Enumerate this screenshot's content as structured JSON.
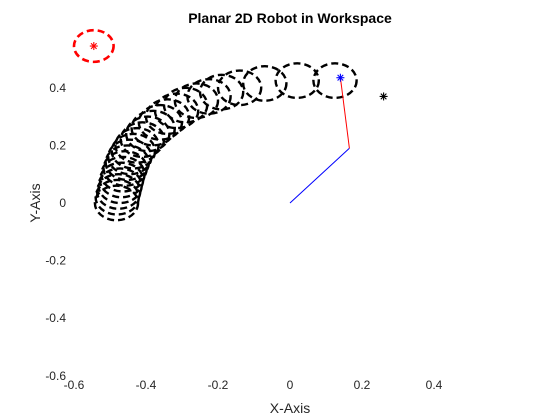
{
  "chart_data": {
    "type": "scatter",
    "title": "Planar 2D Robot in Workspace",
    "xlabel": "X-Axis",
    "ylabel": "Y-Axis",
    "xlim": [
      -0.6,
      0.4
    ],
    "ylim": [
      -0.6,
      0.5
    ],
    "xticks": [
      "-0.6",
      "-0.4",
      "-0.2",
      "0",
      "0.2",
      "0.4"
    ],
    "yticks": [
      "-0.6",
      "-0.4",
      "-0.2",
      "0",
      "0.2",
      "0.4"
    ],
    "grid": false,
    "legend": "none",
    "series": [
      {
        "role": "link-1",
        "color": "#0000ff",
        "x": [
          0.0,
          0.165
        ],
        "y": [
          0.0,
          0.19
        ]
      },
      {
        "role": "link-2",
        "color": "#ff0000",
        "x": [
          0.165,
          0.14
        ],
        "y": [
          0.19,
          0.435
        ]
      },
      {
        "role": "end-effector",
        "color": "#0000ff",
        "marker": "asterisk",
        "x": [
          0.14
        ],
        "y": [
          0.435
        ]
      },
      {
        "role": "target",
        "color": "#000000",
        "marker": "asterisk",
        "x": [
          0.26
        ],
        "y": [
          0.37
        ]
      },
      {
        "role": "obstacle",
        "color": "#ff0000",
        "marker": "asterisk",
        "linestyle": "dashed",
        "x": [
          -0.545
        ],
        "y": [
          0.545
        ],
        "radius": 0.055
      },
      {
        "role": "trajectory-circles",
        "color": "#000000",
        "linestyle": "dashed",
        "radius": 0.06,
        "x": [
          0.125,
          0.02,
          -0.07,
          -0.14,
          -0.19,
          -0.225,
          -0.26,
          -0.29,
          -0.315,
          -0.34,
          -0.36,
          -0.38,
          -0.395,
          -0.41,
          -0.425,
          -0.435,
          -0.445,
          -0.452,
          -0.458,
          -0.464,
          -0.468,
          -0.472,
          -0.476,
          -0.48,
          -0.482
        ],
        "y": [
          0.425,
          0.425,
          0.415,
          0.4,
          0.385,
          0.37,
          0.355,
          0.34,
          0.32,
          0.3,
          0.28,
          0.26,
          0.24,
          0.22,
          0.2,
          0.18,
          0.16,
          0.14,
          0.12,
          0.1,
          0.08,
          0.06,
          0.04,
          0.02,
          0.0
        ]
      }
    ]
  }
}
